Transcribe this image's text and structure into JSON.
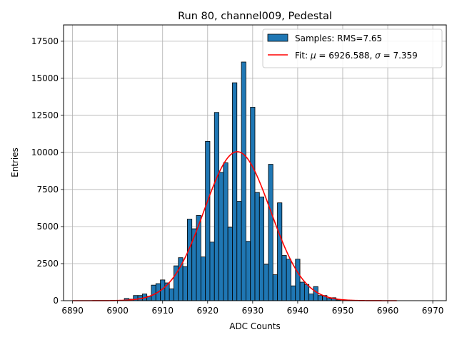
{
  "chart_data": {
    "type": "bar",
    "title": "Run 80, channel009, Pedestal",
    "xlabel": "ADC Counts",
    "ylabel": "Entries",
    "xlim": [
      6888,
      6973
    ],
    "ylim": [
      0,
      18600
    ],
    "xticks": [
      "6890",
      "6900",
      "6910",
      "6920",
      "6930",
      "6940",
      "6950",
      "6960",
      "6970"
    ],
    "yticks": [
      "0",
      "2500",
      "5000",
      "7500",
      "10000",
      "12500",
      "15000",
      "17500"
    ],
    "grid": true,
    "legend_position": "top-right",
    "bar_color": "#1f77b4",
    "fit_color": "#ff0000",
    "bins": {
      "width": 1,
      "x": [
        6902,
        6903,
        6904,
        6905,
        6906,
        6907,
        6908,
        6909,
        6910,
        6911,
        6912,
        6913,
        6914,
        6915,
        6916,
        6917,
        6918,
        6919,
        6920,
        6921,
        6922,
        6923,
        6924,
        6925,
        6926,
        6927,
        6928,
        6929,
        6930,
        6931,
        6932,
        6933,
        6934,
        6935,
        6936,
        6937,
        6938,
        6939,
        6940,
        6941,
        6942,
        6943,
        6944,
        6945,
        6946,
        6947,
        6948,
        6949
      ],
      "values": [
        150,
        100,
        350,
        350,
        450,
        300,
        1050,
        1150,
        1400,
        1200,
        800,
        2350,
        2900,
        2300,
        5500,
        4850,
        5750,
        2950,
        10750,
        3950,
        12700,
        8650,
        9300,
        4950,
        14700,
        6700,
        16100,
        4000,
        13050,
        7300,
        7000,
        2450,
        9200,
        1750,
        6600,
        3050,
        2800,
        1000,
        2800,
        1250,
        1100,
        450,
        950,
        350,
        350,
        150,
        200,
        50
      ]
    },
    "series": [
      {
        "name": "Samples: RMS=7.65",
        "type": "histogram"
      },
      {
        "name": "Fit: μ = 6926.588, σ = 7.359",
        "type": "gaussian",
        "mu": 6926.588,
        "sigma": 7.359,
        "amplitude": 10050,
        "x_range": [
          6890,
          6962
        ]
      }
    ],
    "legend": {
      "samples_label": "Samples: RMS=7.65",
      "fit_prefix": "Fit: ",
      "mu_symbol": "μ",
      "mu_value": " = 6926.588, ",
      "sigma_symbol": "σ",
      "sigma_value": " = 7.359"
    }
  }
}
